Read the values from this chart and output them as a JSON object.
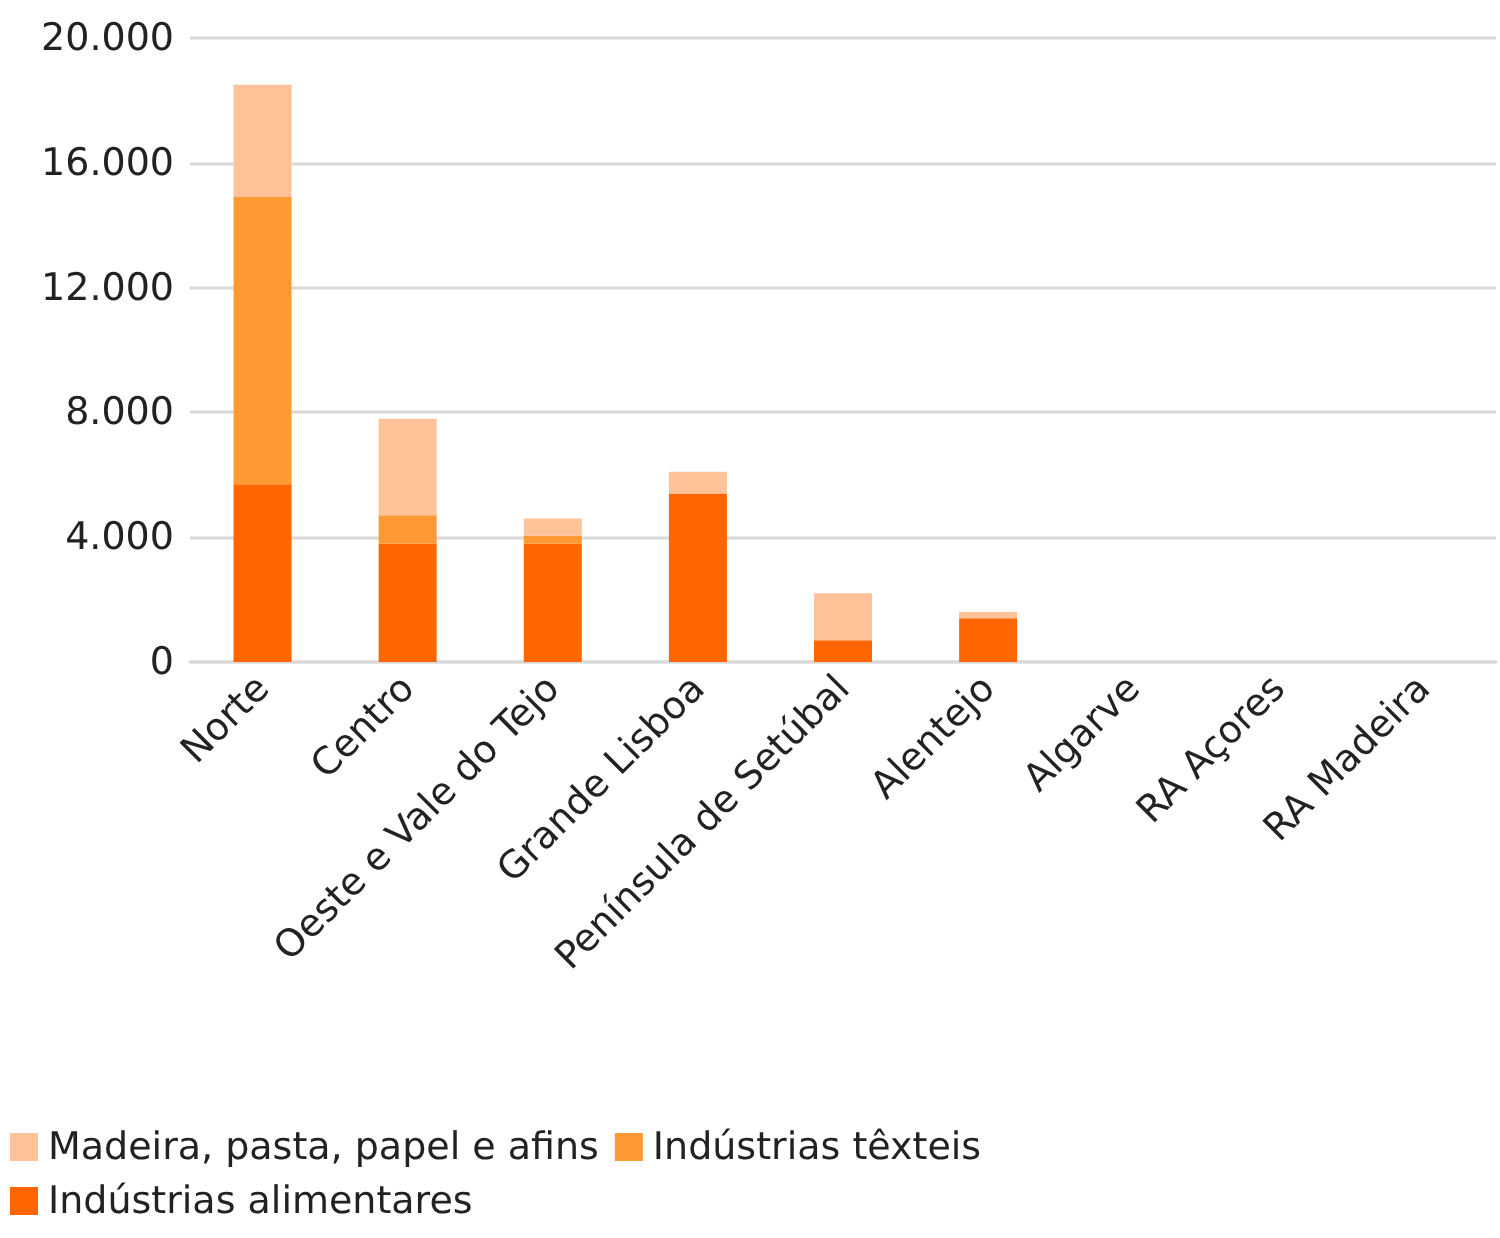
{
  "chart_data": {
    "type": "bar",
    "stacked": true,
    "categories": [
      "Norte",
      "Centro",
      "Oeste e Vale do Tejo",
      "Grande Lisboa",
      "Península de Setúbal",
      "Alentejo",
      "Algarve",
      "RA Açores",
      "RA Madeira"
    ],
    "series": [
      {
        "name": "Indústrias alimentares",
        "color": "#ff6600",
        "values": [
          5700,
          3800,
          3800,
          5400,
          700,
          1400,
          0,
          0,
          0
        ]
      },
      {
        "name": "Indústrias têxteis",
        "color": "#ff9933",
        "values": [
          9200,
          900,
          250,
          0,
          0,
          0,
          0,
          0,
          0
        ]
      },
      {
        "name": "Madeira, pasta, papel e afins",
        "color": "#ffc299",
        "values": [
          3600,
          3100,
          550,
          700,
          1500,
          200,
          0,
          0,
          0
        ]
      }
    ],
    "ylim": [
      0,
      20000
    ],
    "yticks": [
      {
        "value": 0,
        "label": "0"
      },
      {
        "value": 4000,
        "label": "4.000"
      },
      {
        "value": 8000,
        "label": "8.000"
      },
      {
        "value": 12000,
        "label": "12.000"
      },
      {
        "value": 16000,
        "label": "16.000"
      },
      {
        "value": 20000,
        "label": "20.000"
      }
    ],
    "grid": "y",
    "legend": "bottom"
  }
}
